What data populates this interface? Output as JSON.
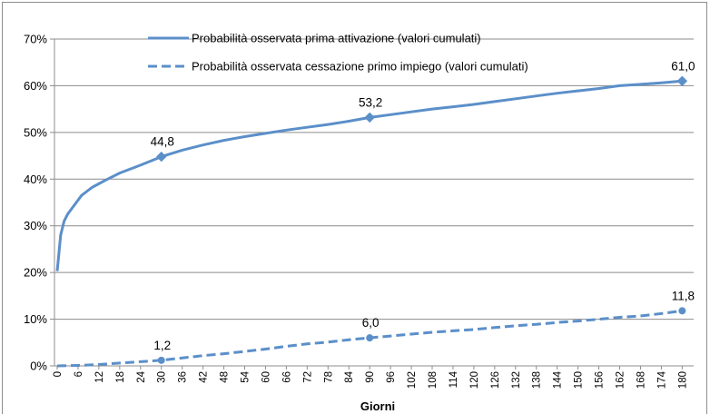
{
  "chart_data": {
    "type": "line",
    "title": "",
    "xlabel": "Giorni",
    "ylabel": "",
    "ylim": [
      0,
      0.7
    ],
    "yticks": [
      "0%",
      "10%",
      "20%",
      "30%",
      "40%",
      "50%",
      "60%",
      "70%"
    ],
    "xlim": [
      0,
      182
    ],
    "xticks": [
      0,
      6,
      12,
      18,
      24,
      30,
      36,
      42,
      48,
      54,
      60,
      66,
      72,
      78,
      84,
      90,
      96,
      102,
      108,
      114,
      120,
      126,
      132,
      138,
      144,
      150,
      156,
      162,
      168,
      174,
      180
    ],
    "grid": "horizontal",
    "legend_position": "top",
    "series": [
      {
        "name": "Probabilità osservata prima attivazione (valori cumulati)",
        "style": "solid",
        "marker": "diamond",
        "color": "#5b8fc9",
        "x": [
          0,
          1,
          2,
          3,
          5,
          7,
          10,
          14,
          18,
          24,
          30,
          36,
          42,
          48,
          54,
          60,
          66,
          72,
          78,
          84,
          90,
          96,
          102,
          108,
          114,
          120,
          126,
          132,
          138,
          144,
          150,
          156,
          162,
          168,
          174,
          180
        ],
        "y": [
          0.203,
          0.28,
          0.31,
          0.325,
          0.345,
          0.365,
          0.382,
          0.398,
          0.413,
          0.43,
          0.448,
          0.462,
          0.473,
          0.483,
          0.491,
          0.498,
          0.505,
          0.511,
          0.517,
          0.524,
          0.532,
          0.538,
          0.544,
          0.55,
          0.555,
          0.56,
          0.566,
          0.572,
          0.578,
          0.584,
          0.589,
          0.594,
          0.6,
          0.603,
          0.606,
          0.61
        ]
      },
      {
        "name": "Probabilità osservata cessazione primo impiego (valori cumulati)",
        "style": "dashed",
        "marker": "circle",
        "color": "#5b8fc9",
        "x": [
          0,
          6,
          12,
          18,
          24,
          30,
          36,
          42,
          48,
          54,
          60,
          66,
          72,
          78,
          84,
          90,
          96,
          102,
          108,
          114,
          120,
          126,
          132,
          138,
          144,
          150,
          156,
          162,
          168,
          174,
          180
        ],
        "y": [
          0.0,
          0.001,
          0.003,
          0.006,
          0.009,
          0.012,
          0.017,
          0.022,
          0.026,
          0.031,
          0.036,
          0.042,
          0.047,
          0.051,
          0.056,
          0.06,
          0.064,
          0.068,
          0.072,
          0.075,
          0.078,
          0.082,
          0.086,
          0.089,
          0.093,
          0.096,
          0.1,
          0.104,
          0.107,
          0.112,
          0.118
        ]
      }
    ],
    "data_labels": [
      {
        "series": 0,
        "x": 30,
        "y": 0.448,
        "text": "44,8"
      },
      {
        "series": 0,
        "x": 90,
        "y": 0.532,
        "text": "53,2"
      },
      {
        "series": 0,
        "x": 180,
        "y": 0.61,
        "text": "61,0"
      },
      {
        "series": 1,
        "x": 30,
        "y": 0.012,
        "text": "1,2"
      },
      {
        "series": 1,
        "x": 90,
        "y": 0.06,
        "text": "6,0"
      },
      {
        "series": 1,
        "x": 180,
        "y": 0.118,
        "text": "11,8"
      }
    ]
  }
}
